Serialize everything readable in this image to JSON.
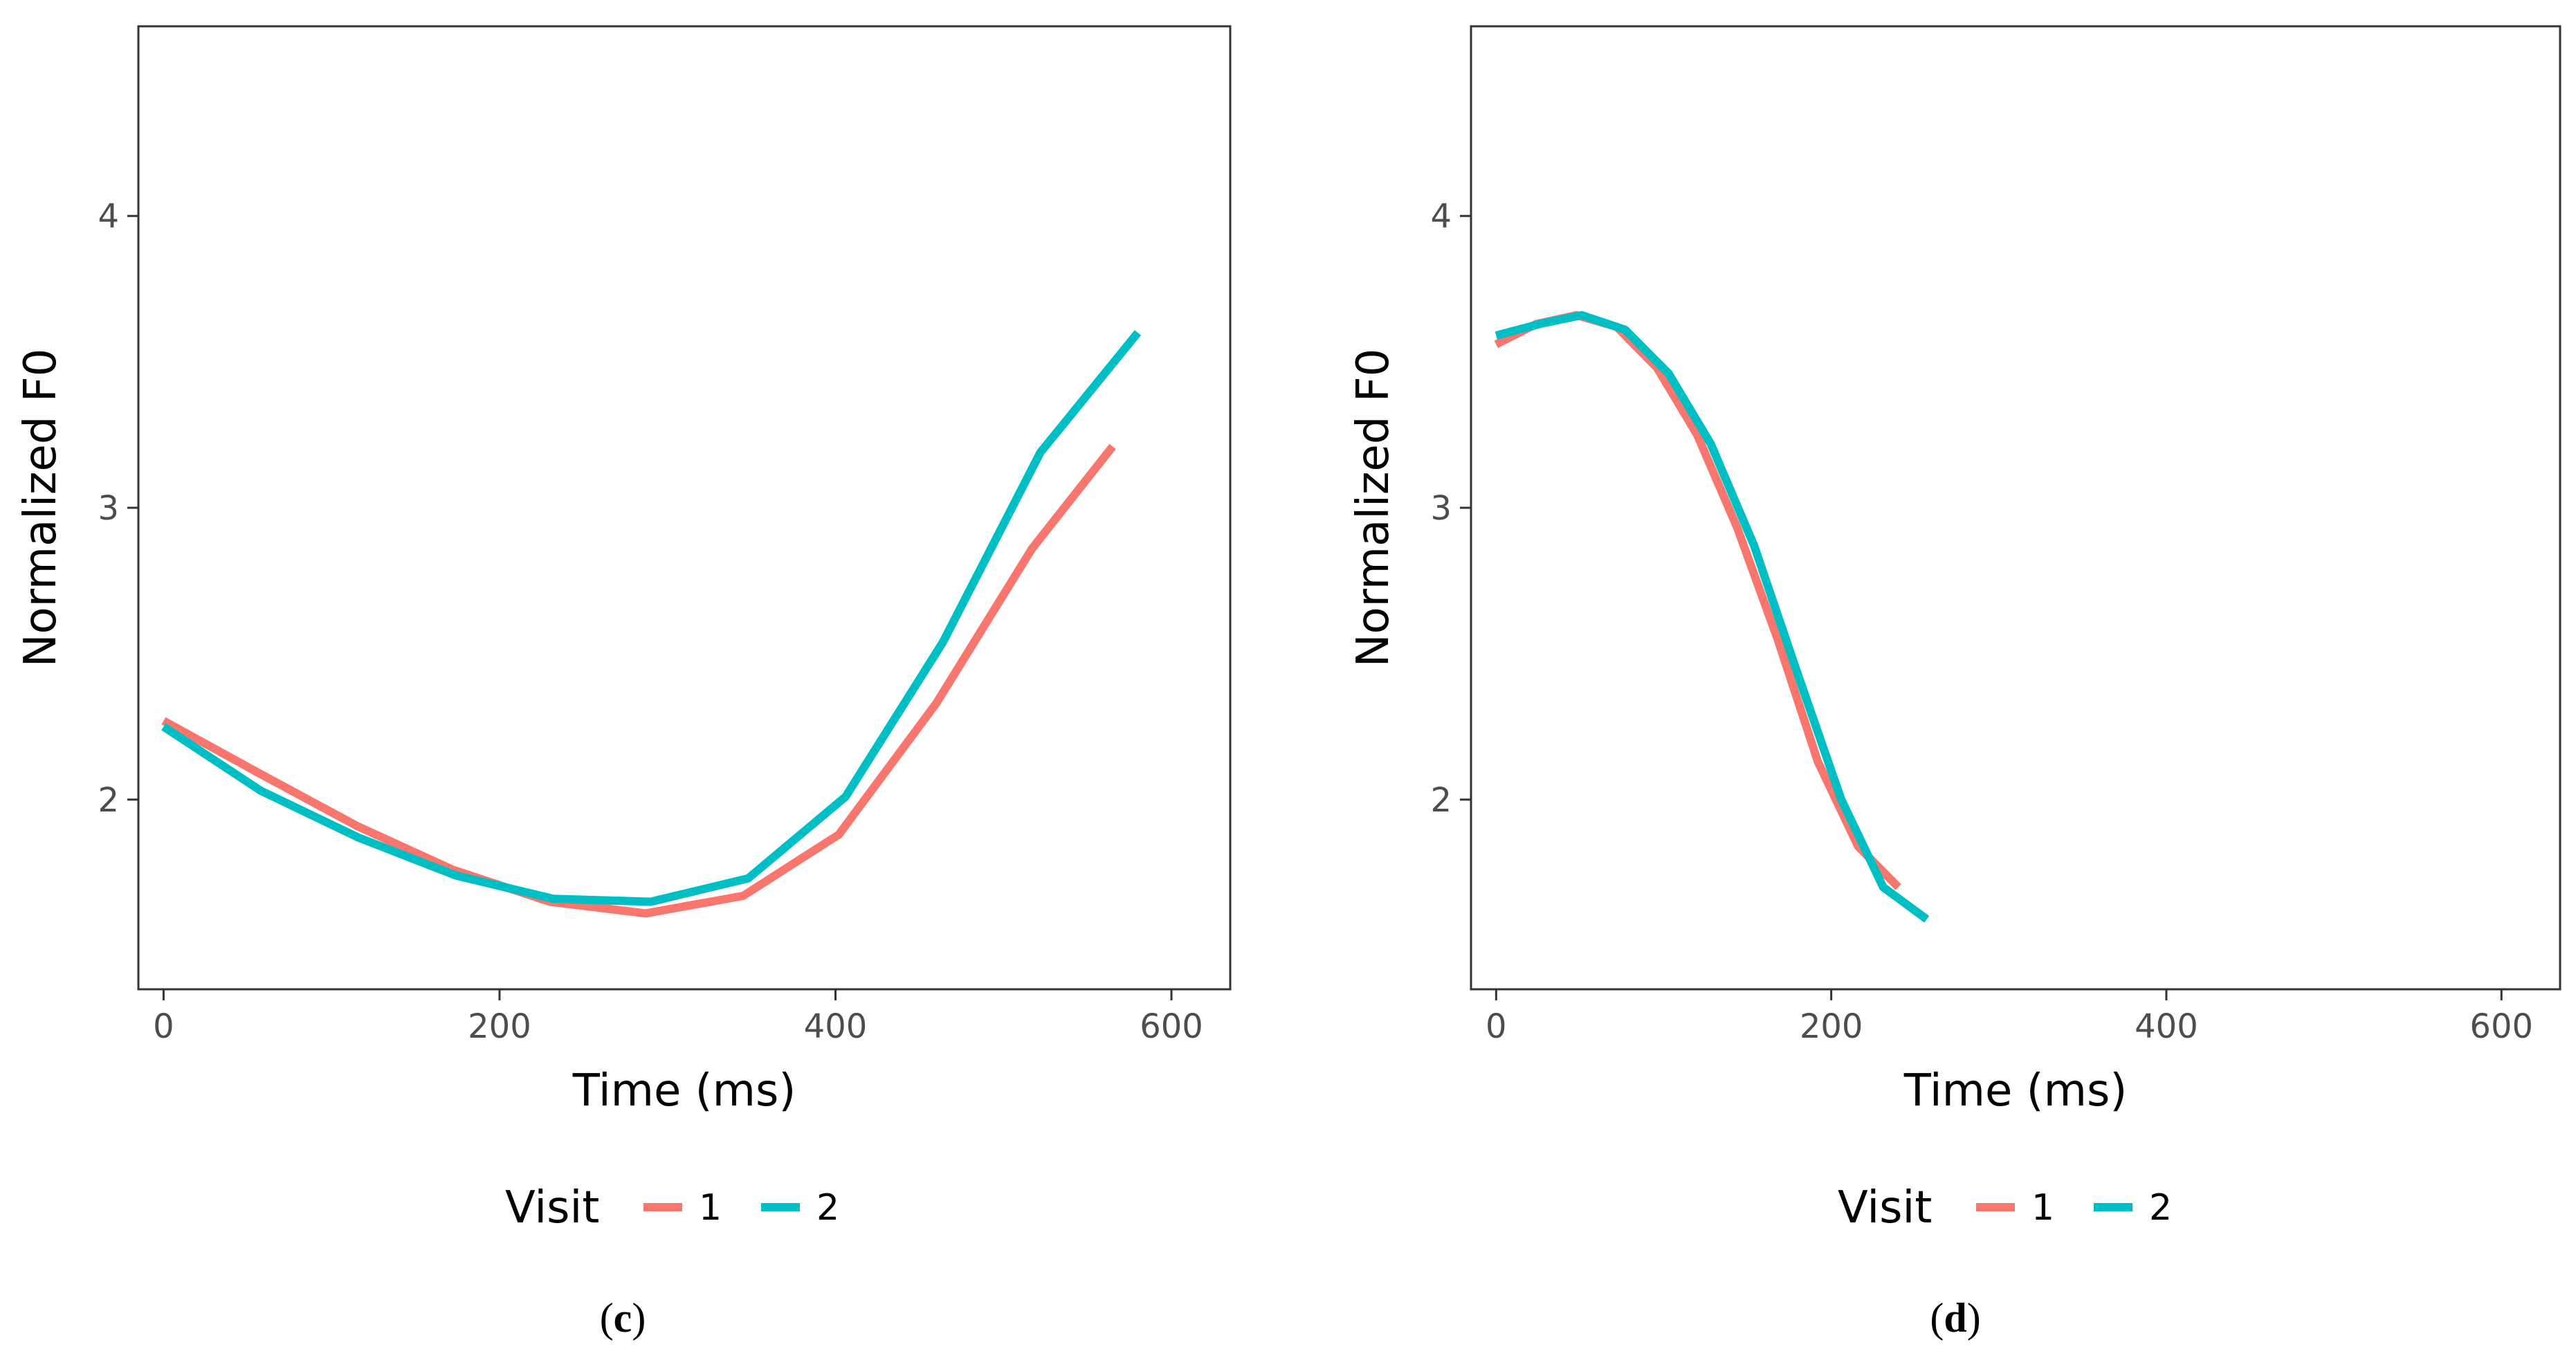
{
  "chart_data": [
    {
      "type": "line",
      "panel_label": "c",
      "xlabel": "Time (ms)",
      "ylabel": "Normalized F0",
      "xlim": [
        -15,
        635
      ],
      "ylim": [
        1.35,
        4.65
      ],
      "xticks": [
        0,
        200,
        400,
        600
      ],
      "yticks": [
        2,
        3,
        4
      ],
      "legend": {
        "title": "Visit",
        "position": "bottom"
      },
      "series": [
        {
          "name": "1",
          "color": "#F8766D",
          "x": [
            0,
            57,
            115,
            172,
            230,
            287,
            345,
            402,
            460,
            517,
            565
          ],
          "y": [
            2.27,
            2.09,
            1.91,
            1.76,
            1.65,
            1.61,
            1.67,
            1.88,
            2.33,
            2.86,
            3.21
          ]
        },
        {
          "name": "2",
          "color": "#00BFC4",
          "x": [
            0,
            58,
            116,
            174,
            232,
            290,
            348,
            406,
            464,
            522,
            580
          ],
          "y": [
            2.25,
            2.03,
            1.87,
            1.74,
            1.66,
            1.65,
            1.73,
            2.01,
            2.54,
            3.19,
            3.6
          ]
        }
      ]
    },
    {
      "type": "line",
      "panel_label": "d",
      "xlabel": "Time (ms)",
      "ylabel": "Normalized F0",
      "xlim": [
        -15,
        635
      ],
      "ylim": [
        1.35,
        4.65
      ],
      "xticks": [
        0,
        200,
        400,
        600
      ],
      "yticks": [
        2,
        3,
        4
      ],
      "legend": {
        "title": "Visit",
        "position": "bottom"
      },
      "series": [
        {
          "name": "1",
          "color": "#F8766D",
          "x": [
            0,
            24,
            48,
            72,
            96,
            120,
            144,
            168,
            192,
            216,
            240
          ],
          "y": [
            3.56,
            3.63,
            3.66,
            3.62,
            3.48,
            3.25,
            2.93,
            2.55,
            2.13,
            1.84,
            1.7
          ]
        },
        {
          "name": "2",
          "color": "#00BFC4",
          "x": [
            0,
            26,
            51,
            77,
            103,
            128,
            154,
            180,
            206,
            231,
            257
          ],
          "y": [
            3.59,
            3.63,
            3.66,
            3.61,
            3.46,
            3.22,
            2.87,
            2.43,
            2.0,
            1.7,
            1.59
          ]
        }
      ]
    }
  ]
}
